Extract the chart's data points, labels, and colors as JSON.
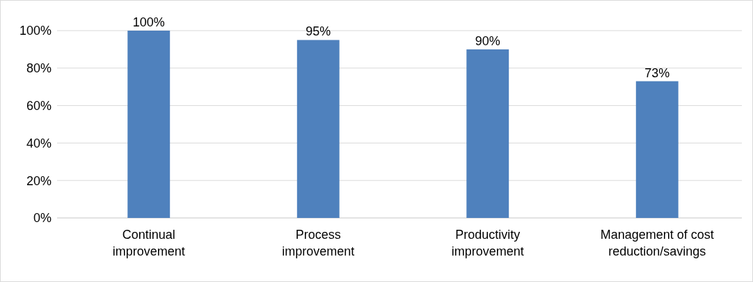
{
  "chart_data": {
    "type": "bar",
    "categories": [
      "Continual improvement",
      "Process improvement",
      "Productivity improvement",
      "Management of cost reduction/savings"
    ],
    "values": [
      100,
      95,
      90,
      73
    ],
    "color": "#4f81bd",
    "value_labels": [
      "100%",
      "95%",
      "90%",
      "73%"
    ],
    "ylim": [
      0,
      100
    ],
    "yticks": [
      {
        "value": 0,
        "label": "0%"
      },
      {
        "value": 20,
        "label": "20%"
      },
      {
        "value": 40,
        "label": "40%"
      },
      {
        "value": 60,
        "label": "60%"
      },
      {
        "value": 80,
        "label": "80%"
      },
      {
        "value": 100,
        "label": "100%"
      }
    ],
    "grid": "y"
  }
}
